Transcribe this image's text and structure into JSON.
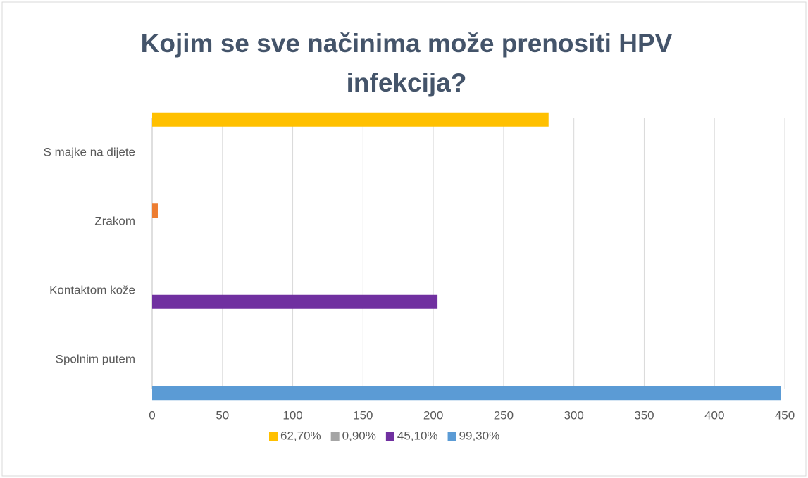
{
  "chart_data": {
    "type": "bar",
    "orientation": "horizontal",
    "title": "Kojim se sve načinima može prenositi HPV infekcija?",
    "categories": [
      "Spolnim putem",
      "Kontaktom kože",
      "Zrakom",
      "S majke na dijete"
    ],
    "series": [
      {
        "name": "62,70%",
        "color": "#ffc000",
        "values": [
          null,
          null,
          null,
          282
        ]
      },
      {
        "name": "0,90%",
        "color": "#ed7d31",
        "legend_color": "#a5a5a5",
        "values": [
          null,
          null,
          4,
          null
        ]
      },
      {
        "name": "45,10%",
        "color": "#7030a0",
        "values": [
          null,
          203,
          null,
          null
        ]
      },
      {
        "name": "99,30%",
        "color": "#5b9bd5",
        "values": [
          447,
          null,
          null,
          null
        ]
      }
    ],
    "xlim": [
      0,
      450
    ],
    "xticks": [
      0,
      50,
      100,
      150,
      200,
      250,
      300,
      350,
      400,
      450
    ],
    "grid": true,
    "legend": "bottom"
  }
}
